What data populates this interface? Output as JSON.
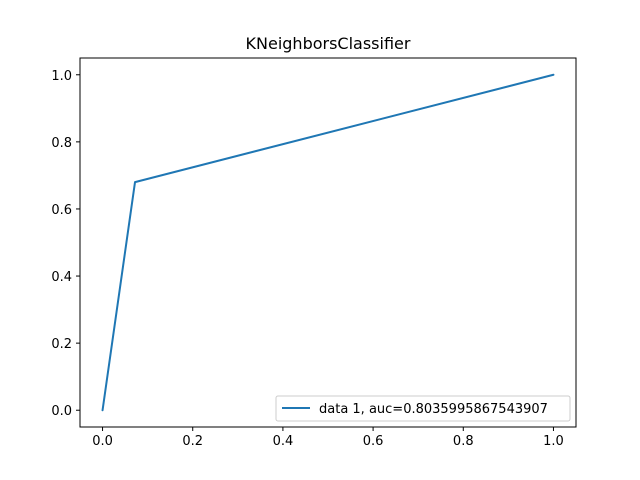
{
  "chart_data": {
    "type": "line",
    "title": "KNeighborsClassifier",
    "xlabel": "",
    "ylabel": "",
    "xlim": [
      -0.05,
      1.05
    ],
    "ylim": [
      -0.05,
      1.05
    ],
    "xticks": [
      0.0,
      0.2,
      0.4,
      0.6,
      0.8,
      1.0
    ],
    "xtick_labels": [
      "0.0",
      "0.2",
      "0.4",
      "0.6",
      "0.8",
      "1.0"
    ],
    "yticks": [
      0.0,
      0.2,
      0.4,
      0.6,
      0.8,
      1.0
    ],
    "ytick_labels": [
      "0.0",
      "0.2",
      "0.4",
      "0.6",
      "0.8",
      "1.0"
    ],
    "grid": false,
    "legend_position": "lower right",
    "series": [
      {
        "name": "data 1, auc=0.8035995867543907",
        "color": "#1f77b4",
        "x": [
          0.0,
          0.072,
          1.0
        ],
        "y": [
          0.0,
          0.68,
          1.0
        ]
      }
    ]
  }
}
